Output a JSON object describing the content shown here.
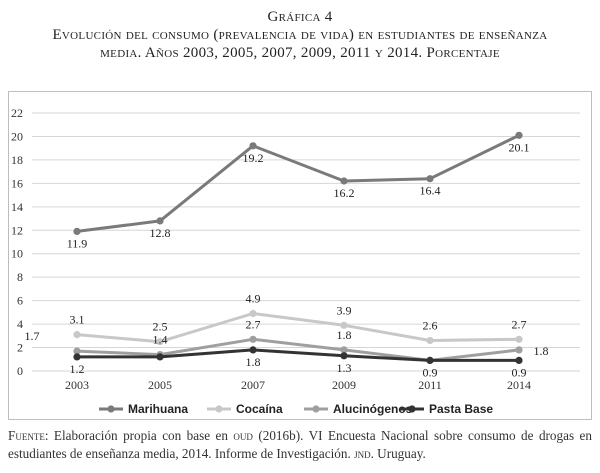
{
  "heading": {
    "kicker": "Gráfica 4",
    "title": "Evolución del consumo (prevalencia de vida) en estudiantes de enseñanza media. Años 2003, 2005, 2007, 2009, 2011 y 2014. Porcentaje"
  },
  "chart_data": {
    "type": "line",
    "x": [
      "2003",
      "2005",
      "2007",
      "2009",
      "2011",
      "2014"
    ],
    "ylim": [
      0,
      22
    ],
    "yticks": [
      "0",
      "2",
      "4",
      "6",
      "8",
      "10",
      "12",
      "14",
      "16",
      "18",
      "20",
      "22"
    ],
    "grid": true,
    "legend": "bottom",
    "series": [
      {
        "name": "Marihuana",
        "values": [
          11.9,
          12.8,
          19.2,
          16.2,
          16.4,
          20.1
        ],
        "labels": [
          "11.9",
          "12.8",
          "19.2",
          "16.2",
          "16.4",
          "20.1"
        ],
        "color": "#7a7a7a"
      },
      {
        "name": "Cocaína",
        "values": [
          3.1,
          2.5,
          4.9,
          3.9,
          2.6,
          2.7
        ],
        "labels": [
          "3.1",
          "2.5",
          "4.9",
          "3.9",
          "2.6",
          "2.7"
        ],
        "color": "#c8c8c8"
      },
      {
        "name": "Alucinógenos",
        "values": [
          1.7,
          1.4,
          2.7,
          1.8,
          0.9,
          1.8
        ],
        "labels": [
          "1.7",
          "1.4",
          "2.7",
          "1.8",
          "",
          "1.8"
        ],
        "color": "#9f9f9f"
      },
      {
        "name": "Pasta Base",
        "values": [
          1.2,
          1.2,
          1.8,
          1.3,
          0.9,
          0.9
        ],
        "labels": [
          "1.2",
          "",
          "1.8",
          "1.3",
          "0.9",
          "0.9"
        ],
        "color": "#333333"
      }
    ]
  },
  "source": {
    "lead": "Fuente:",
    "text_1": " Elaboración propia con base en ",
    "oud": "oud",
    "text_2": " (2016b). VI Encuesta Nacional sobre consumo de drogas en estudiantes de enseñanza media, 2014. Informe de Investigación. ",
    "jnd": "jnd",
    "text_3": ". Uruguay."
  }
}
